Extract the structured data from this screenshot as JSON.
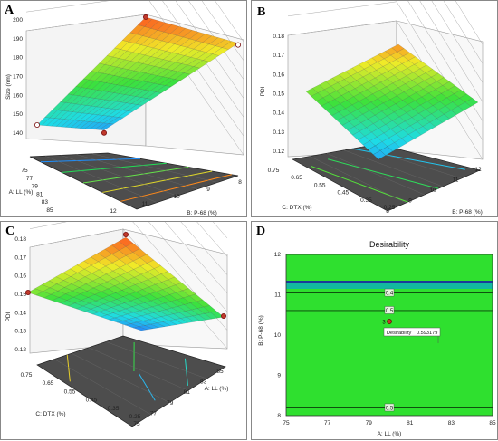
{
  "colors": {
    "floor": "#4d4d4d",
    "low": "#1565ff",
    "mid": "#35e23c",
    "high": "#ff2a1a",
    "design_point": "#c0392b",
    "desirability_green": "#2fe02f"
  },
  "panels": {
    "A": "A",
    "B": "B",
    "C": "C",
    "D": "D"
  },
  "chart_data": [
    {
      "panel": "A",
      "type": "surface3d",
      "zlabel": "Size (nm)",
      "z_ticks": [
        "140",
        "150",
        "160",
        "170",
        "180",
        "190",
        "200"
      ],
      "x_axis": {
        "label": "A: LL (%)",
        "ticks": [
          "75",
          "77",
          "79",
          "81",
          "83",
          "85"
        ]
      },
      "y_axis": {
        "label": "B: P-68 (%)",
        "ticks": [
          "12",
          "11",
          "10",
          "9",
          "8"
        ]
      },
      "corners": {
        "LL75_P12": 152,
        "LL85_P12": 143,
        "LL75_P8": 201,
        "LL85_P8": 192
      },
      "design_points": [
        {
          "ll": 75,
          "p68": 12,
          "size": 152
        },
        {
          "ll": 85,
          "p68": 12,
          "size": 140
        },
        {
          "ll": 75,
          "p68": 8,
          "size": 201
        },
        {
          "ll": 85,
          "p68": 8,
          "size": 190
        }
      ]
    },
    {
      "panel": "B",
      "type": "surface3d",
      "zlabel": "PDI",
      "z_ticks": [
        "0.12",
        "0.13",
        "0.14",
        "0.15",
        "0.16",
        "0.17",
        "0.18"
      ],
      "x_axis": {
        "label": "C: DTX (%)",
        "ticks": [
          "0.75",
          "0.65",
          "0.55",
          "0.45",
          "0.35",
          "0.25"
        ]
      },
      "y_axis": {
        "label": "B: P-68 (%)",
        "ticks": [
          "8",
          "9",
          "10",
          "11",
          "12"
        ]
      },
      "corners": {
        "DTX075_P8": 0.155,
        "DTX025_P8": 0.128,
        "DTX075_P12": 0.172,
        "DTX025_P12": 0.148
      }
    },
    {
      "panel": "C",
      "type": "surface3d",
      "zlabel": "PDI",
      "z_ticks": [
        "0.12",
        "0.13",
        "0.14",
        "0.15",
        "0.16",
        "0.17",
        "0.18"
      ],
      "x_axis": {
        "label": "C: DTX (%)",
        "ticks": [
          "0.75",
          "0.65",
          "0.55",
          "0.45",
          "0.35",
          "0.25"
        ]
      },
      "y_axis": {
        "label": "A: LL (%)",
        "ticks": [
          "75",
          "77",
          "79",
          "81",
          "83",
          "85"
        ]
      },
      "corners": {
        "DTX075_LL75": 0.158,
        "DTX025_LL75": 0.121,
        "DTX075_LL85": 0.181,
        "DTX025_LL85": 0.148
      },
      "design_points": [
        {
          "dtx": 0.75,
          "ll": 75,
          "pdi": 0.158
        },
        {
          "dtx": 0.75,
          "ll": 85,
          "pdi": 0.184
        },
        {
          "dtx": 0.25,
          "ll": 85,
          "pdi": 0.149
        }
      ]
    },
    {
      "panel": "D",
      "type": "contour",
      "title": "Desirability",
      "xlabel": "A: LL (%)",
      "ylabel": "B: P-68 (%)",
      "xlim": [
        75,
        85
      ],
      "ylim": [
        8,
        12
      ],
      "x_ticks": [
        "75",
        "77",
        "79",
        "81",
        "83",
        "85"
      ],
      "y_ticks": [
        "8",
        "9",
        "10",
        "11",
        "12"
      ],
      "contours": [
        {
          "level": "0.5",
          "p68": 8.1
        },
        {
          "level": "0.5",
          "p68": 11.15
        },
        {
          "level": "0.4",
          "p68": 11.7
        }
      ],
      "point": {
        "ll": 80,
        "p68": 10,
        "count_label": "3"
      },
      "annotation": {
        "label": "Desirability",
        "value": "0.593179"
      }
    }
  ]
}
